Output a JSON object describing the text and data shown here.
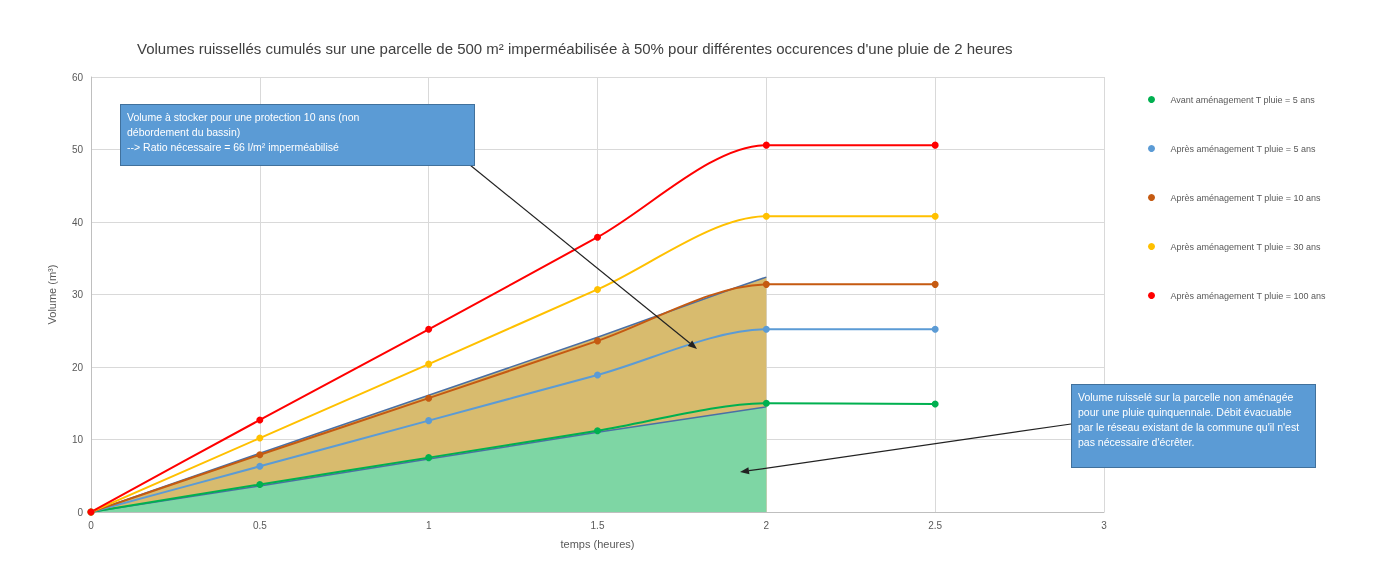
{
  "chart_data": {
    "type": "line",
    "title": "Volumes ruissellés cumulés sur une parcelle de 500 m² imperméabilisée à 50% pour différentes occurences d'une pluie de 2 heures",
    "xlabel": "temps (heures)",
    "ylabel": "Volume (m³)",
    "x": [
      0,
      0.5,
      1,
      1.5,
      2,
      2.5
    ],
    "series": [
      {
        "type": "area",
        "marker": "none",
        "color": "#d8bb6e",
        "x": [
          0,
          0.5,
          1,
          1.5,
          1.9,
          2
        ],
        "values": [
          0,
          8.1,
          16.1,
          24.1,
          30.8,
          32.4
        ]
      },
      {
        "type": "area",
        "marker": "none",
        "color": "#7ed6a4",
        "x": [
          0,
          0.5,
          1,
          1.5,
          2
        ],
        "values": [
          0,
          3.6,
          7.3,
          11,
          14.5
        ]
      },
      {
        "name": "Avant aménagement T pluie = 5 ans",
        "color": "#00b050",
        "values": [
          0,
          3.8,
          7.5,
          11.2,
          15,
          14.9
        ]
      },
      {
        "name": "Après aménagement T pluie = 5 ans",
        "color": "#5b9bd5",
        "values": [
          0,
          6.3,
          12.6,
          18.9,
          25.2,
          25.2
        ]
      },
      {
        "name": "Après aménagement T pluie = 10 ans",
        "color": "#c55a11",
        "values": [
          0,
          7.9,
          15.7,
          23.6,
          31.4,
          31.4
        ]
      },
      {
        "name": "Après aménagement T pluie = 30 ans",
        "color": "#ffc000",
        "values": [
          0,
          10.2,
          20.4,
          30.7,
          40.8,
          40.8
        ]
      },
      {
        "name": "Après aménagement T pluie = 100 ans",
        "color": "#ff0000",
        "values": [
          0,
          12.7,
          25.2,
          37.9,
          50.6,
          50.6
        ]
      }
    ],
    "xlim": [
      0,
      3
    ],
    "xticks": [
      0,
      0.5,
      1,
      1.5,
      2,
      2.5,
      3
    ],
    "ylim": [
      0,
      60
    ],
    "yticks": [
      0,
      10,
      20,
      30,
      40,
      50,
      60
    ],
    "grid": true,
    "legend": "right",
    "marker": "circle",
    "line_style": "solid",
    "annotations": [
      "Volume à stocker pour une protection 10 ans (non\ndébordement du bassin)\n--> Ratio nécessaire = 66 l/m² imperméabilisé",
      "Volume ruisselé sur la parcelle non aménagée\npour une pluie quinquennale. Débit évacuable\npar le réseau existant de la commune qu'il n'est\npas nécessaire d'écrêter."
    ]
  }
}
